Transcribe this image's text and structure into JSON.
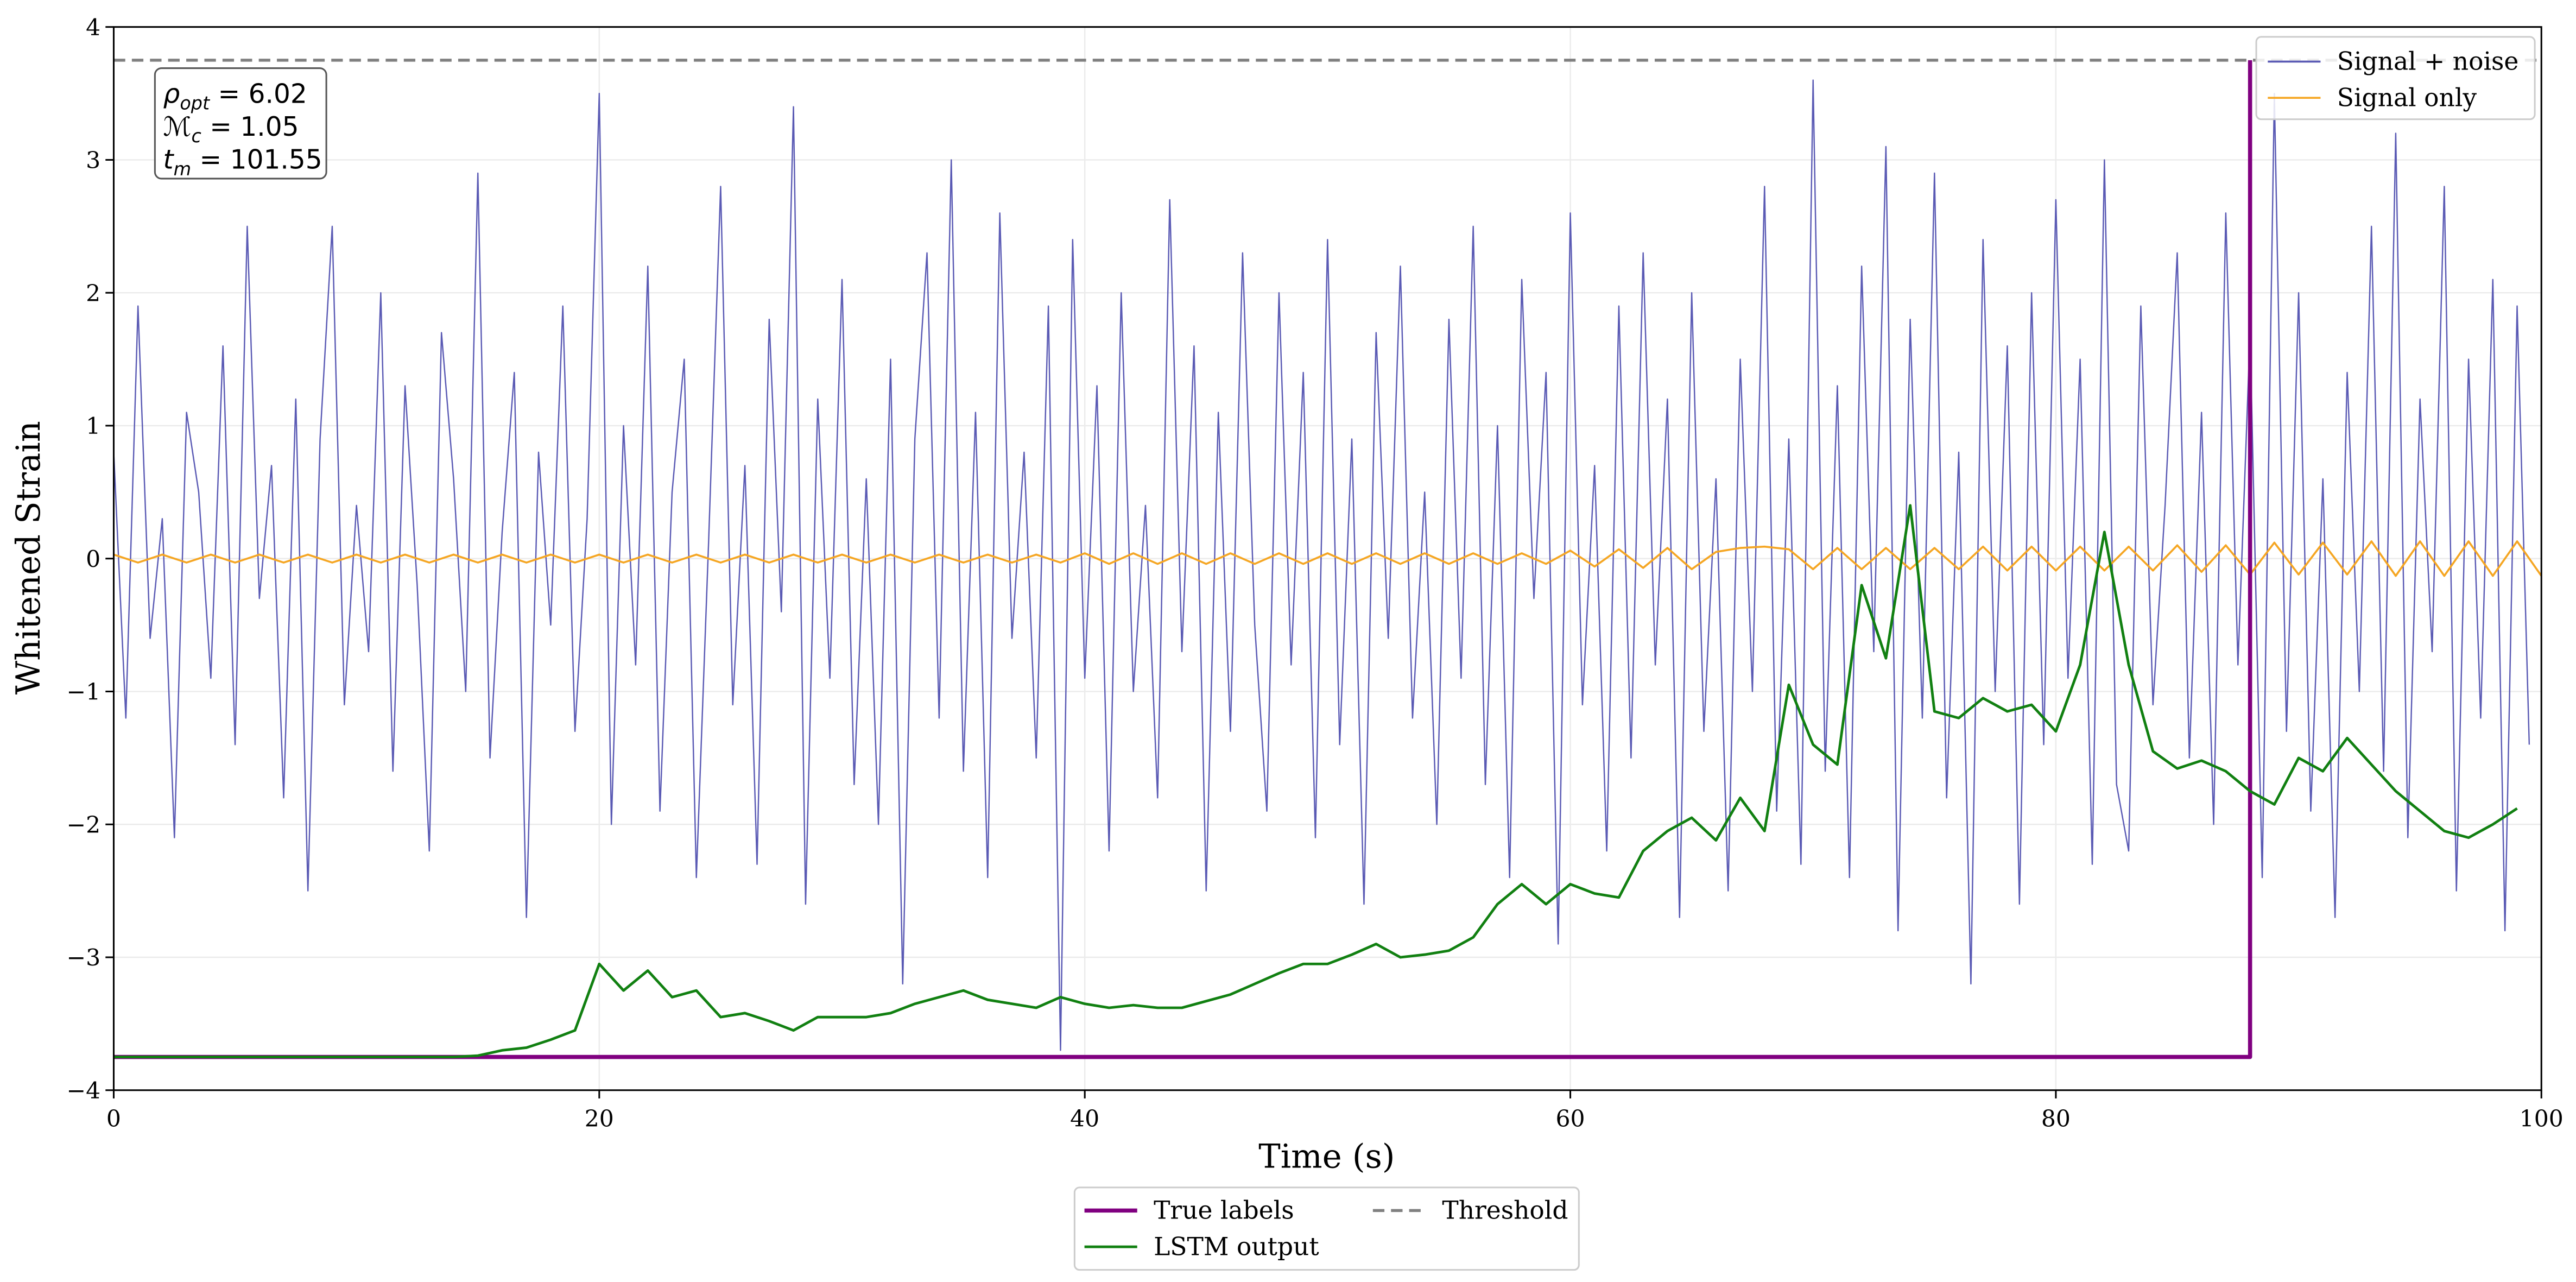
{
  "chart_data": {
    "type": "line",
    "xlabel": "Time (s)",
    "ylabel": "Whitened Strain",
    "xlim": [
      0,
      100
    ],
    "ylim": [
      -4,
      4
    ],
    "xticks": [
      0,
      20,
      40,
      60,
      80,
      100
    ],
    "yticks": [
      {
        "value": -4,
        "label": "−4"
      },
      {
        "value": -3,
        "label": "−3"
      },
      {
        "value": -2,
        "label": "−2"
      },
      {
        "value": -1,
        "label": "−1"
      },
      0,
      1,
      2,
      3,
      4
    ],
    "grid": true,
    "annotations": [
      {
        "symbol": "ρ",
        "sub": "opt",
        "text": " = 6.02"
      },
      {
        "symbol": "ℳ",
        "sub": "c",
        "text": " = 1.05"
      },
      {
        "symbol": "t",
        "sub": "m",
        "text": " = 101.55"
      }
    ],
    "series": [
      {
        "name": "Signal + noise",
        "color": "#5a5ab4",
        "width": 0.8,
        "dash": "solid",
        "legend": "upper right",
        "x": [
          0,
          0.5,
          1,
          1.5,
          2,
          2.5,
          3,
          3.5,
          4,
          4.5,
          5,
          5.5,
          6,
          6.5,
          7,
          7.5,
          8,
          8.5,
          9,
          9.5,
          10,
          10.5,
          11,
          11.5,
          12,
          12.5,
          13,
          13.5,
          14,
          14.5,
          15,
          15.5,
          16,
          16.5,
          17,
          17.5,
          18,
          18.5,
          19,
          19.5,
          20,
          20.5,
          21,
          21.5,
          22,
          22.5,
          23,
          23.5,
          24,
          24.5,
          25,
          25.5,
          26,
          26.5,
          27,
          27.5,
          28,
          28.5,
          29,
          29.5,
          30,
          30.5,
          31,
          31.5,
          32,
          32.5,
          33,
          33.5,
          34,
          34.5,
          35,
          35.5,
          36,
          36.5,
          37,
          37.5,
          38,
          38.5,
          39,
          39.5,
          40,
          40.5,
          41,
          41.5,
          42,
          42.5,
          43,
          43.5,
          44,
          44.5,
          45,
          45.5,
          46,
          46.5,
          47,
          47.5,
          48,
          48.5,
          49,
          49.5,
          50,
          50.5,
          51,
          51.5,
          52,
          52.5,
          53,
          53.5,
          54,
          54.5,
          55,
          55.5,
          56,
          56.5,
          57,
          57.5,
          58,
          58.5,
          59,
          59.5,
          60,
          60.5,
          61,
          61.5,
          62,
          62.5,
          63,
          63.5,
          64,
          64.5,
          65,
          65.5,
          66,
          66.5,
          67,
          67.5,
          68,
          68.5,
          69,
          69.5,
          70,
          70.5,
          71,
          71.5,
          72,
          72.5,
          73,
          73.5,
          74,
          74.5,
          75,
          75.5,
          76,
          76.5,
          77,
          77.5,
          78,
          78.5,
          79,
          79.5,
          80,
          80.5,
          81,
          81.5,
          82,
          82.5,
          83,
          83.5,
          84,
          84.5,
          85,
          85.5,
          86,
          86.5,
          87,
          87.5,
          88,
          88.5,
          89,
          89.5,
          90,
          90.5,
          91,
          91.5,
          92,
          92.5,
          93,
          93.5,
          94,
          94.5,
          95,
          95.5,
          96,
          96.5,
          97,
          97.5,
          98,
          98.5,
          99,
          99.5
        ],
        "values": [
          0.8,
          -1.2,
          1.9,
          -0.6,
          0.3,
          -2.1,
          1.1,
          0.5,
          -0.9,
          1.6,
          -1.4,
          2.5,
          -0.3,
          0.7,
          -1.8,
          1.2,
          -2.5,
          0.9,
          2.5,
          -1.1,
          0.4,
          -0.7,
          2.0,
          -1.6,
          1.3,
          -0.2,
          -2.2,
          1.7,
          0.6,
          -1.0,
          2.9,
          -1.5,
          0.2,
          1.4,
          -2.7,
          0.8,
          -0.5,
          1.9,
          -1.3,
          0.3,
          3.5,
          -2.0,
          1.0,
          -0.8,
          2.2,
          -1.9,
          0.5,
          1.5,
          -2.4,
          0.1,
          2.8,
          -1.1,
          0.7,
          -2.3,
          1.8,
          -0.4,
          3.4,
          -2.6,
          1.2,
          -0.9,
          2.1,
          -1.7,
          0.6,
          -2.0,
          1.5,
          -3.2,
          0.9,
          2.3,
          -1.2,
          3.0,
          -1.6,
          1.1,
          -2.4,
          2.6,
          -0.6,
          0.8,
          -1.5,
          1.9,
          -3.7,
          2.4,
          -0.9,
          1.3,
          -2.2,
          2.0,
          -1.0,
          0.4,
          -1.8,
          2.7,
          -0.7,
          1.6,
          -2.5,
          1.1,
          -1.3,
          2.3,
          -0.5,
          -1.9,
          2.0,
          -0.8,
          1.4,
          -2.1,
          2.4,
          -1.4,
          0.9,
          -2.6,
          1.7,
          -0.6,
          2.2,
          -1.2,
          0.5,
          -2.0,
          1.8,
          -0.9,
          2.5,
          -1.7,
          1.0,
          -2.4,
          2.1,
          -0.3,
          1.4,
          -2.9,
          2.6,
          -1.1,
          0.7,
          -2.2,
          1.9,
          -1.5,
          2.3,
          -0.8,
          1.2,
          -2.7,
          2.0,
          -1.3,
          0.6,
          -2.5,
          1.5,
          -1.0,
          2.8,
          -1.9,
          0.9,
          -2.3,
          3.6,
          -1.6,
          1.3,
          -2.4,
          2.2,
          -0.7,
          3.1,
          -2.8,
          1.8,
          -1.2,
          2.9,
          -1.8,
          0.8,
          -3.2,
          2.4,
          -1.0,
          1.6,
          -2.6,
          2.0,
          -1.4,
          2.7,
          -0.9,
          1.5,
          -2.3,
          3.0,
          -1.7,
          -2.2,
          1.9,
          -1.1,
          0.4,
          2.3,
          -1.5,
          1.1,
          -2.0,
          2.6,
          -0.8,
          1.7,
          -2.4,
          3.5,
          -1.3,
          2.0,
          -1.9,
          0.6,
          -2.7,
          1.4,
          -1.0,
          2.5,
          -1.6,
          3.2,
          -2.1,
          1.2,
          -0.7,
          2.8,
          -2.5,
          1.5,
          -1.2,
          2.1,
          -2.8,
          1.9,
          -1.4
        ]
      },
      {
        "name": "Signal only",
        "color": "#f5a623",
        "width": 1.2,
        "dash": "solid",
        "legend": "upper right",
        "x": [
          0,
          1,
          2,
          3,
          4,
          5,
          6,
          7,
          8,
          9,
          10,
          11,
          12,
          13,
          14,
          15,
          16,
          17,
          18,
          19,
          20,
          21,
          22,
          23,
          24,
          25,
          26,
          27,
          28,
          29,
          30,
          31,
          32,
          33,
          34,
          35,
          36,
          37,
          38,
          39,
          40,
          41,
          42,
          43,
          44,
          45,
          46,
          47,
          48,
          49,
          50,
          51,
          52,
          53,
          54,
          55,
          56,
          57,
          58,
          59,
          60,
          61,
          62,
          63,
          64,
          65,
          66,
          67,
          68,
          69,
          70,
          71,
          72,
          73,
          74,
          75,
          76,
          77,
          78,
          79,
          80,
          81,
          82,
          83,
          84,
          85,
          86,
          87,
          88,
          89,
          90,
          91,
          92,
          93,
          94,
          95,
          96,
          97,
          98,
          99,
          100
        ],
        "values": [
          0.03,
          -0.03,
          0.03,
          -0.03,
          0.03,
          -0.03,
          0.03,
          -0.03,
          0.03,
          -0.03,
          0.03,
          -0.03,
          0.03,
          -0.03,
          0.03,
          -0.03,
          0.03,
          -0.03,
          0.03,
          -0.03,
          0.03,
          -0.03,
          0.03,
          -0.03,
          0.03,
          -0.03,
          0.03,
          -0.03,
          0.03,
          -0.03,
          0.03,
          -0.03,
          0.03,
          -0.03,
          0.03,
          -0.03,
          0.03,
          -0.03,
          0.03,
          -0.03,
          0.04,
          -0.04,
          0.04,
          -0.04,
          0.04,
          -0.04,
          0.04,
          -0.04,
          0.04,
          -0.04,
          0.04,
          -0.04,
          0.04,
          -0.04,
          0.04,
          -0.04,
          0.04,
          -0.04,
          0.04,
          -0.04,
          0.06,
          -0.06,
          0.07,
          -0.07,
          0.08,
          -0.08,
          0.05,
          0.08,
          0.09,
          0.07,
          -0.08,
          0.08,
          -0.08,
          0.08,
          -0.08,
          0.08,
          -0.08,
          0.09,
          -0.09,
          0.09,
          -0.09,
          0.09,
          -0.09,
          0.09,
          -0.09,
          0.1,
          -0.1,
          0.1,
          -0.12,
          0.12,
          -0.12,
          0.12,
          -0.12,
          0.13,
          -0.13,
          0.13,
          -0.13,
          0.13,
          -0.13,
          0.13,
          -0.13
        ]
      },
      {
        "name": "True labels",
        "color": "#800080",
        "width": 2.5,
        "dash": "solid",
        "legend": "lower center",
        "x": [
          0,
          88,
          88
        ],
        "values": [
          -3.75,
          -3.75,
          3.75
        ]
      },
      {
        "name": "LSTM output",
        "color": "#118011",
        "width": 1.6,
        "dash": "solid",
        "legend": "lower center",
        "x": [
          0,
          1,
          2,
          3,
          4,
          5,
          6,
          7,
          8,
          9,
          10,
          11,
          12,
          13,
          14,
          15,
          16,
          17,
          18,
          19,
          20,
          21,
          22,
          23,
          24,
          25,
          26,
          27,
          28,
          29,
          30,
          31,
          32,
          33,
          34,
          35,
          36,
          37,
          38,
          39,
          40,
          41,
          42,
          43,
          44,
          45,
          46,
          47,
          48,
          49,
          50,
          51,
          52,
          53,
          54,
          55,
          56,
          57,
          58,
          59,
          60,
          61,
          62,
          63,
          64,
          65,
          66,
          67,
          68,
          69,
          70,
          71,
          72,
          73,
          74,
          75,
          76,
          77,
          78,
          79,
          80,
          81,
          82,
          83,
          84,
          85,
          86,
          87,
          88,
          89,
          90,
          91,
          92,
          93,
          94,
          95,
          96,
          97,
          98,
          99
        ],
        "values": [
          -3.75,
          -3.75,
          -3.75,
          -3.75,
          -3.75,
          -3.75,
          -3.75,
          -3.75,
          -3.75,
          -3.75,
          -3.75,
          -3.75,
          -3.75,
          -3.75,
          -3.75,
          -3.74,
          -3.7,
          -3.68,
          -3.62,
          -3.55,
          -3.05,
          -3.25,
          -3.1,
          -3.3,
          -3.25,
          -3.45,
          -3.42,
          -3.48,
          -3.55,
          -3.45,
          -3.45,
          -3.45,
          -3.42,
          -3.35,
          -3.3,
          -3.25,
          -3.32,
          -3.35,
          -3.38,
          -3.3,
          -3.35,
          -3.38,
          -3.36,
          -3.38,
          -3.38,
          -3.33,
          -3.28,
          -3.2,
          -3.12,
          -3.05,
          -3.05,
          -2.98,
          -2.9,
          -3.0,
          -2.98,
          -2.95,
          -2.85,
          -2.6,
          -2.45,
          -2.6,
          -2.45,
          -2.52,
          -2.55,
          -2.2,
          -2.05,
          -1.95,
          -2.12,
          -1.8,
          -2.05,
          -0.95,
          -1.4,
          -1.55,
          -0.2,
          -0.75,
          0.4,
          -1.15,
          -1.2,
          -1.05,
          -1.15,
          -1.1,
          -1.3,
          -0.8,
          0.2,
          -0.8,
          -1.45,
          -1.58,
          -1.52,
          -1.6,
          -1.75,
          -1.85,
          -1.5,
          -1.6,
          -1.35,
          -1.55,
          -1.75,
          -1.9,
          -2.05,
          -2.1,
          -2.0,
          -1.88
        ]
      },
      {
        "name": "Threshold",
        "color": "#808080",
        "width": 1.8,
        "dash": "dashed",
        "legend": "lower center",
        "x": [
          0,
          100
        ],
        "values": [
          3.75,
          3.75
        ]
      }
    ]
  }
}
